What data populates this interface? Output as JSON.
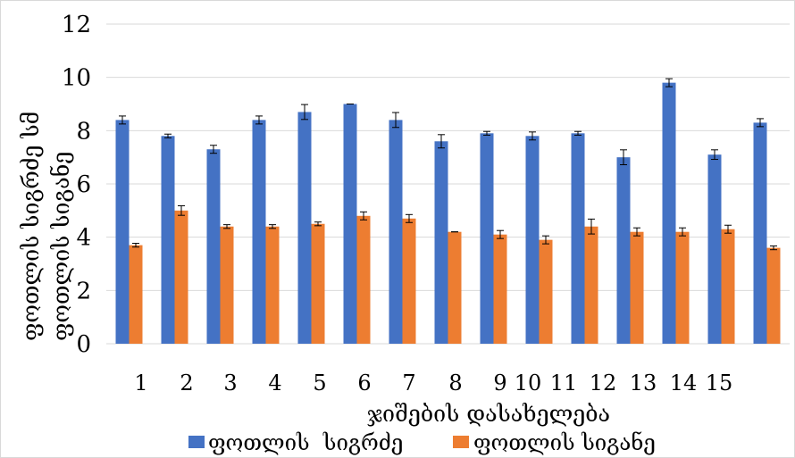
{
  "chart_data": {
    "type": "bar",
    "categories": [
      "1",
      "2",
      "3",
      "4",
      "5",
      "6",
      "7",
      "8",
      "9",
      "10",
      "11",
      "12",
      "13",
      "14",
      "15"
    ],
    "x_tick_labels": [
      "1",
      "2",
      "3",
      "4",
      "5",
      "6",
      "7",
      "8",
      "9",
      "10",
      "11",
      "12",
      "13",
      "14",
      "15"
    ],
    "xlabel": "ჯიშების დასახელება",
    "ylabel_lines": [
      "ფოთლის  სიგრძე  სმ",
      "ფოთლის სიგანე"
    ],
    "ylim": [
      0,
      12
    ],
    "yticks": [
      "0",
      "2",
      "4",
      "6",
      "8",
      "10",
      "12"
    ],
    "grid": true,
    "legend_position": "bottom",
    "series": [
      {
        "name": "ფოთლის  სიგრძე",
        "color": "#4472c4",
        "values": [
          8.4,
          7.8,
          7.3,
          8.4,
          8.7,
          9.0,
          8.4,
          7.6,
          7.9,
          7.8,
          7.9,
          7.0,
          9.8,
          7.1,
          8.3
        ],
        "errors": [
          0.15,
          0.07,
          0.15,
          0.15,
          0.28,
          0.0,
          0.28,
          0.25,
          0.07,
          0.15,
          0.07,
          0.28,
          0.15,
          0.18,
          0.15
        ]
      },
      {
        "name": "ფოთლის სიგანე",
        "color": "#ed7d31",
        "values": [
          3.7,
          5.0,
          4.4,
          4.4,
          4.5,
          4.8,
          4.7,
          4.2,
          4.1,
          3.9,
          4.4,
          4.2,
          4.2,
          4.3,
          3.6
        ],
        "errors": [
          0.07,
          0.18,
          0.07,
          0.07,
          0.07,
          0.15,
          0.15,
          0.0,
          0.15,
          0.15,
          0.28,
          0.15,
          0.15,
          0.15,
          0.07
        ]
      }
    ]
  }
}
